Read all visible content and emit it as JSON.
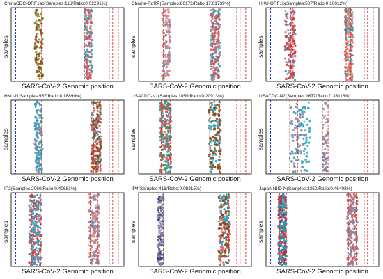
{
  "chart_data": [
    {
      "type": "scatter",
      "title": "ChinaCDC-ORF1ab(Samples:116/Ratio:0.02291%)",
      "xlabel": "SARS-CoV-2 Genomic position",
      "ylabel": "samples",
      "xlim": [
        0,
        100
      ],
      "primer_lines": [
        4,
        95
      ],
      "amplicon_lines": [
        22,
        27,
        65,
        71,
        87,
        90
      ],
      "density": 0.45,
      "point_clusters": [
        {
          "x_range": [
            21,
            28
          ],
          "color": "#6b8e23"
        },
        {
          "x_range": [
            21,
            28
          ],
          "color": "#8b4513"
        },
        {
          "x_range": [
            65,
            72
          ],
          "color": "#1aa3b8"
        },
        {
          "x_range": [
            65,
            72
          ],
          "color": "#7b8aa8"
        },
        {
          "x_range": [
            66,
            71
          ],
          "color": "#e05050"
        }
      ]
    },
    {
      "type": "scatter",
      "title": "Charite-RdRP(Samples:86172/Ratio:17.01739%)",
      "xlabel": "SARS-CoV-2 Genomic position",
      "ylabel": "samples",
      "xlim": [
        0,
        100
      ],
      "primer_lines": [
        4,
        95
      ],
      "amplicon_lines": [
        22,
        27,
        66,
        71,
        87,
        90
      ],
      "density": 0.55,
      "point_clusters": [
        {
          "x_range": [
            21,
            28
          ],
          "color": "#7b8aa8"
        },
        {
          "x_range": [
            21,
            28
          ],
          "color": "#e08080"
        },
        {
          "x_range": [
            64,
            72
          ],
          "color": "#1aa3b8"
        },
        {
          "x_range": [
            64,
            72
          ],
          "color": "#7b8aa8"
        },
        {
          "x_range": [
            64,
            72
          ],
          "color": "#e05050"
        }
      ]
    },
    {
      "type": "scatter",
      "title": "HKU-ORF1b(Samples:507/Ratio:0.10012%)",
      "xlabel": "SARS-CoV-2 Genomic position",
      "ylabel": "samples",
      "xlim": [
        0,
        100
      ],
      "primer_lines": [
        4,
        95
      ],
      "amplicon_lines": [
        22,
        24,
        71,
        75,
        87,
        90
      ],
      "density": 0.6,
      "point_clusters": [
        {
          "x_range": [
            17,
            26
          ],
          "color": "#e02020"
        },
        {
          "x_range": [
            17,
            26
          ],
          "color": "#7b8aa8"
        },
        {
          "x_range": [
            70,
            77
          ],
          "color": "#e05050"
        },
        {
          "x_range": [
            70,
            77
          ],
          "color": "#1aa3b8"
        },
        {
          "x_range": [
            70,
            77
          ],
          "color": "#f08070"
        }
      ]
    },
    {
      "type": "scatter",
      "title": "HKU-N(Samples:957/Ratio:0.18899%)",
      "xlabel": "SARS-CoV-2 Genomic position",
      "ylabel": "samples",
      "xlim": [
        0,
        100
      ],
      "primer_lines": [
        4,
        95
      ],
      "amplicon_lines": [
        22,
        27,
        73,
        79,
        87,
        90
      ],
      "density": 0.6,
      "point_clusters": [
        {
          "x_range": [
            21,
            28
          ],
          "color": "#7b8aa8"
        },
        {
          "x_range": [
            21,
            28
          ],
          "color": "#1aa3b8"
        },
        {
          "x_range": [
            71,
            80
          ],
          "color": "#1aa3b8"
        },
        {
          "x_range": [
            71,
            80
          ],
          "color": "#e05050"
        },
        {
          "x_range": [
            71,
            80
          ],
          "color": "#8b4513"
        }
      ]
    },
    {
      "type": "scatter",
      "title": "USACDC-N1(Samples:1059/Ratio:0.20913%)",
      "xlabel": "SARS-CoV-2 Genomic position",
      "ylabel": "samples",
      "xlim": [
        0,
        100
      ],
      "primer_lines": [
        4,
        95
      ],
      "amplicon_lines": [
        20,
        28,
        63,
        72,
        87,
        90
      ],
      "density": 0.7,
      "point_clusters": [
        {
          "x_range": [
            19,
            29
          ],
          "color": "#1aa3b8"
        },
        {
          "x_range": [
            19,
            29
          ],
          "color": "#2e8b57"
        },
        {
          "x_range": [
            19,
            29
          ],
          "color": "#e05050"
        },
        {
          "x_range": [
            62,
            73
          ],
          "color": "#1aa3b8"
        },
        {
          "x_range": [
            62,
            73
          ],
          "color": "#8b4513"
        }
      ]
    },
    {
      "type": "scatter",
      "title": "USACDC-N2(Samples:1677/Ratio:0.33118%)",
      "xlabel": "SARS-CoV-2 Genomic position",
      "ylabel": "samples",
      "xlim": [
        0,
        100
      ],
      "primer_lines": [
        4,
        95
      ],
      "amplicon_lines": [
        21,
        28,
        50,
        55,
        87,
        90
      ],
      "density": 0.55,
      "point_clusters": [
        {
          "x_range": [
            21,
            40
          ],
          "color": "#1aa3b8"
        },
        {
          "x_range": [
            22,
            36
          ],
          "color": "#7b8aa8"
        },
        {
          "x_range": [
            50,
            55
          ],
          "color": "#7b8aa8"
        }
      ]
    },
    {
      "type": "scatter",
      "title": "IP2(Samples:2060/Ratio:0.40681%)",
      "xlabel": "SARS-CoV-2 Genomic position",
      "ylabel": "samples",
      "xlim": [
        0,
        100
      ],
      "primer_lines": [
        4,
        95
      ],
      "amplicon_lines": [
        18,
        26,
        70,
        77,
        87,
        90
      ],
      "density": 0.75,
      "point_clusters": [
        {
          "x_range": [
            16,
            27
          ],
          "color": "#e02020"
        },
        {
          "x_range": [
            16,
            27
          ],
          "color": "#1aa3b8"
        },
        {
          "x_range": [
            16,
            27
          ],
          "color": "#7b8aa8"
        },
        {
          "x_range": [
            69,
            78
          ],
          "color": "#f08070"
        },
        {
          "x_range": [
            69,
            78
          ],
          "color": "#7b8aa8"
        }
      ]
    },
    {
      "type": "scatter",
      "title": "IP4(Samples:416/Ratio:0.08215%)",
      "xlabel": "SARS-CoV-2 Genomic position",
      "ylabel": "samples",
      "xlim": [
        0,
        100
      ],
      "primer_lines": [
        4,
        95
      ],
      "amplicon_lines": [
        18,
        22,
        73,
        80,
        87,
        90
      ],
      "density": 0.6,
      "point_clusters": [
        {
          "x_range": [
            17,
            22
          ],
          "color": "#1f3f8f"
        },
        {
          "x_range": [
            17,
            22
          ],
          "color": "#7b8aa8"
        },
        {
          "x_range": [
            71,
            81
          ],
          "color": "#e05050"
        },
        {
          "x_range": [
            71,
            81
          ],
          "color": "#1aa3b8"
        },
        {
          "x_range": [
            71,
            81
          ],
          "color": "#8b4513"
        }
      ]
    },
    {
      "type": "scatter",
      "title": "Japan-NIID-N(Samples:2350/Ratio:0.46408%)",
      "xlabel": "SARS-CoV-2 Genomic position",
      "ylabel": "samples",
      "xlim": [
        0,
        100
      ],
      "primer_lines": [
        4,
        95
      ],
      "amplicon_lines": [
        12,
        18,
        73,
        80,
        87,
        90
      ],
      "density": 0.8,
      "point_clusters": [
        {
          "x_range": [
            11,
            18
          ],
          "color": "#1f3f8f"
        },
        {
          "x_range": [
            11,
            18
          ],
          "color": "#e02020"
        },
        {
          "x_range": [
            11,
            18
          ],
          "color": "#1aa3b8"
        },
        {
          "x_range": [
            72,
            81
          ],
          "color": "#e05050"
        },
        {
          "x_range": [
            72,
            81
          ],
          "color": "#7b8aa8"
        }
      ]
    }
  ],
  "colors": {
    "primer_line": "#1a2fe0",
    "amplicon_line": "#e03030",
    "axis": "#000000"
  }
}
